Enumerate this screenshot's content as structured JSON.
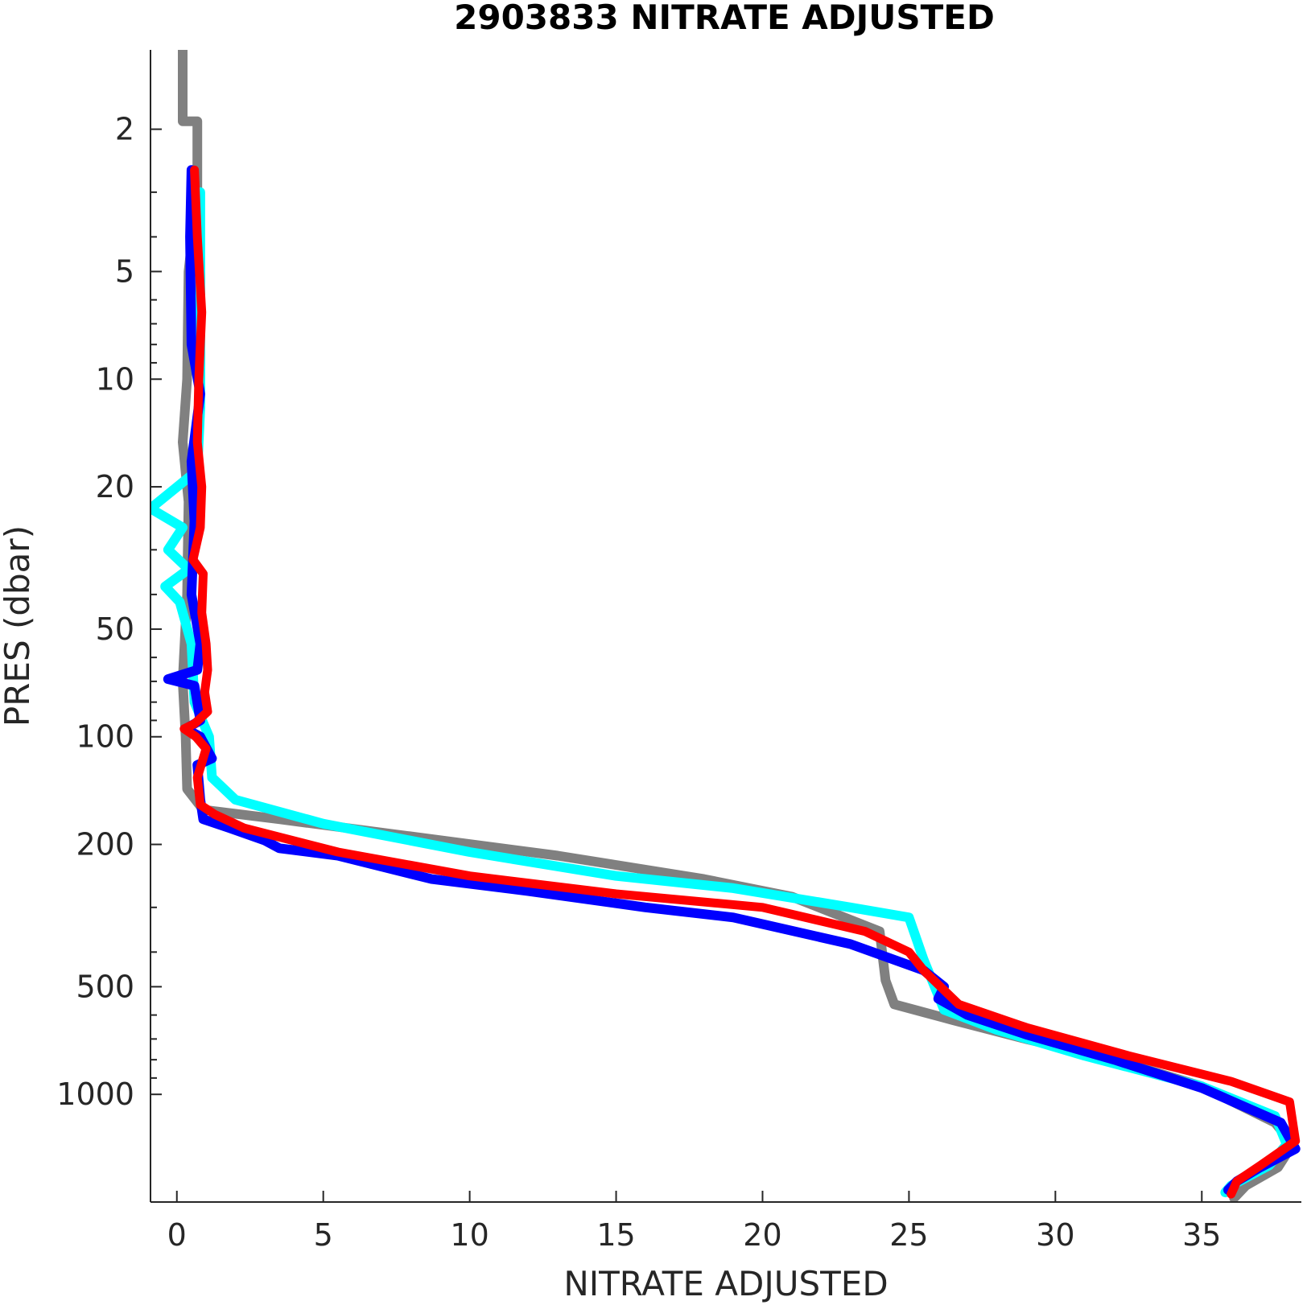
{
  "chart_data": {
    "type": "line",
    "title": "2903833  NITRATE ADJUSTED",
    "xlabel": "NITRATE ADJUSTED",
    "ylabel": "PRES (dbar)",
    "xlim": [
      -0.9,
      38.4
    ],
    "ylim": [
      1.2,
      2000
    ],
    "y_scale": "log",
    "y_reversed": true,
    "grid": false,
    "x_ticks": [
      0,
      5,
      10,
      15,
      20,
      25,
      30,
      35
    ],
    "x_tick_labels": [
      "0",
      "5",
      "10",
      "15",
      "20",
      "25",
      "30",
      "35"
    ],
    "y_ticks": [
      2,
      5,
      10,
      20,
      50,
      100,
      200,
      500,
      1000
    ],
    "y_tick_labels": [
      "2",
      "5",
      "10",
      "20",
      "50",
      "100",
      "200",
      "500",
      "1000"
    ],
    "series": [
      {
        "color": "#808080",
        "width": 12,
        "points": [
          [
            0.2,
            1.2
          ],
          [
            0.2,
            1.9
          ],
          [
            0.7,
            1.9
          ],
          [
            0.7,
            3
          ],
          [
            0.4,
            5
          ],
          [
            0.35,
            10
          ],
          [
            0.2,
            15
          ],
          [
            0.4,
            22
          ],
          [
            0.35,
            40
          ],
          [
            0.2,
            70
          ],
          [
            0.3,
            100
          ],
          [
            0.35,
            140
          ],
          [
            0.9,
            160
          ],
          [
            3.5,
            170
          ],
          [
            8,
            190
          ],
          [
            13,
            215
          ],
          [
            18,
            250
          ],
          [
            21,
            280
          ],
          [
            24,
            350
          ],
          [
            24.2,
            480
          ],
          [
            24.5,
            560
          ],
          [
            26.5,
            620
          ],
          [
            29,
            700
          ],
          [
            32,
            800
          ],
          [
            35,
            950
          ],
          [
            37.5,
            1200
          ],
          [
            38.1,
            1380
          ],
          [
            37.6,
            1600
          ],
          [
            36.5,
            1800
          ],
          [
            36.1,
            1950
          ]
        ]
      },
      {
        "color": "#00ffff",
        "width": 12,
        "points": [
          [
            0.8,
            3
          ],
          [
            0.8,
            6
          ],
          [
            0.8,
            12
          ],
          [
            0.7,
            18
          ],
          [
            -0.9,
            23
          ],
          [
            0.2,
            26
          ],
          [
            -0.3,
            30
          ],
          [
            0.4,
            34
          ],
          [
            -0.4,
            38
          ],
          [
            0.1,
            42
          ],
          [
            0.5,
            55
          ],
          [
            0.6,
            80
          ],
          [
            1.1,
            100
          ],
          [
            1.2,
            130
          ],
          [
            2,
            150
          ],
          [
            5,
            175
          ],
          [
            10,
            210
          ],
          [
            15,
            245
          ],
          [
            19,
            265
          ],
          [
            23,
            300
          ],
          [
            25,
            320
          ],
          [
            25.5,
            420
          ],
          [
            26.2,
            580
          ],
          [
            28,
            660
          ],
          [
            31,
            780
          ],
          [
            35,
            950
          ],
          [
            37.5,
            1150
          ],
          [
            37.9,
            1380
          ],
          [
            37.3,
            1580
          ],
          [
            36,
            1800
          ],
          [
            35.8,
            1880
          ]
        ]
      },
      {
        "color": "#0000ff",
        "width": 12,
        "points": [
          [
            0.5,
            2.6
          ],
          [
            0.45,
            4
          ],
          [
            0.5,
            8
          ],
          [
            0.8,
            11
          ],
          [
            0.5,
            17
          ],
          [
            0.6,
            25
          ],
          [
            0.5,
            40
          ],
          [
            0.8,
            55
          ],
          [
            0.7,
            65
          ],
          [
            -0.3,
            69
          ],
          [
            0.6,
            72
          ],
          [
            0.8,
            90
          ],
          [
            0.3,
            95
          ],
          [
            0.8,
            100
          ],
          [
            1.2,
            115
          ],
          [
            0.7,
            120
          ],
          [
            0.8,
            150
          ],
          [
            0.9,
            170
          ],
          [
            1.8,
            180
          ],
          [
            3,
            195
          ],
          [
            3.5,
            205
          ],
          [
            5.5,
            215
          ],
          [
            8.7,
            250
          ],
          [
            12,
            270
          ],
          [
            16,
            300
          ],
          [
            19,
            320
          ],
          [
            23,
            380
          ],
          [
            25.5,
            450
          ],
          [
            26.2,
            500
          ],
          [
            26,
            540
          ],
          [
            27,
            600
          ],
          [
            29,
            680
          ],
          [
            32,
            800
          ],
          [
            35,
            960
          ],
          [
            37.7,
            1200
          ],
          [
            38.2,
            1420
          ],
          [
            37,
            1600
          ],
          [
            36.2,
            1750
          ],
          [
            35.9,
            1850
          ]
        ]
      },
      {
        "color": "#ff0000",
        "width": 11,
        "points": [
          [
            0.6,
            2.6
          ],
          [
            0.7,
            4
          ],
          [
            0.85,
            6.5
          ],
          [
            0.75,
            10
          ],
          [
            0.7,
            15
          ],
          [
            0.85,
            20
          ],
          [
            0.8,
            26
          ],
          [
            0.55,
            32
          ],
          [
            0.9,
            35
          ],
          [
            0.85,
            45
          ],
          [
            1.0,
            55
          ],
          [
            1.05,
            65
          ],
          [
            0.95,
            75
          ],
          [
            1.05,
            85
          ],
          [
            0.6,
            92
          ],
          [
            0.25,
            95
          ],
          [
            0.65,
            100
          ],
          [
            1.0,
            108
          ],
          [
            0.7,
            130
          ],
          [
            0.8,
            155
          ],
          [
            1.3,
            165
          ],
          [
            2.3,
            180
          ],
          [
            5.5,
            210
          ],
          [
            10,
            245
          ],
          [
            15,
            275
          ],
          [
            20,
            300
          ],
          [
            23.5,
            350
          ],
          [
            25,
            400
          ],
          [
            25.5,
            450
          ],
          [
            26.7,
            560
          ],
          [
            29,
            650
          ],
          [
            32.5,
            780
          ],
          [
            36,
            920
          ],
          [
            38,
            1050
          ],
          [
            38.2,
            1350
          ],
          [
            37,
            1580
          ],
          [
            36.2,
            1750
          ],
          [
            36,
            1900
          ]
        ]
      }
    ]
  }
}
